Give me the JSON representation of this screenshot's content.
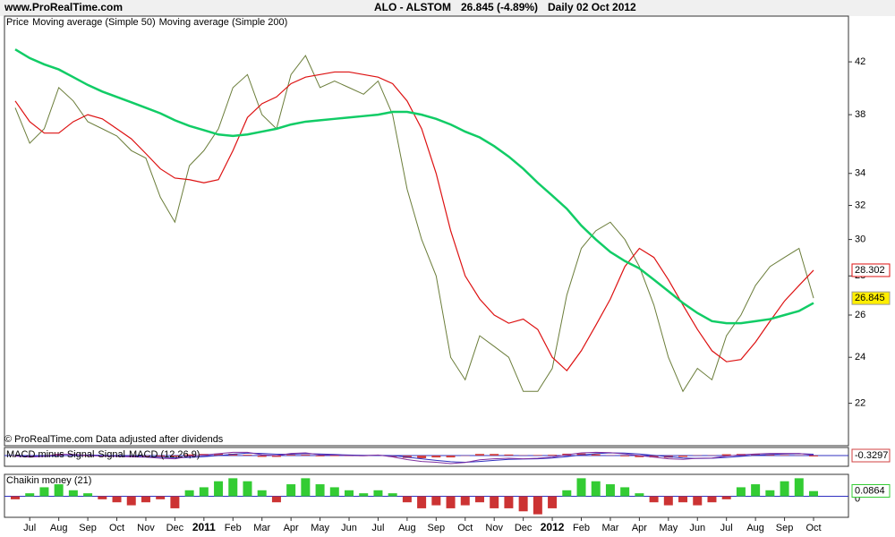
{
  "chart_data": [
    {
      "type": "line",
      "source": "www.ProRealTime.com",
      "title": "ALO - ALSTOM",
      "subtitle": "26.845 (-4.89%)",
      "period": "Daily  02 Oct 2012",
      "legend_label": "Price",
      "footer": "© ProRealTime.com  Data adjusted after dividends",
      "log": true,
      "categories": [
        null,
        "Jul",
        null,
        "Aug",
        null,
        "Sep",
        null,
        "Oct",
        null,
        "Nov",
        null,
        "Dec",
        null,
        "2011",
        null,
        "Feb",
        null,
        "Mar",
        null,
        "Apr",
        null,
        "May",
        null,
        "Jun",
        null,
        "Jul",
        null,
        "Aug",
        null,
        "Sep",
        null,
        "Oct",
        null,
        "Nov",
        null,
        "Dec",
        null,
        "2012",
        null,
        "Feb",
        null,
        "Mar",
        null,
        "Apr",
        null,
        "May",
        null,
        "Jun",
        null,
        "Jul",
        null,
        "Aug",
        null,
        "Sep",
        null,
        "Oct"
      ],
      "series": [
        {
          "name": "Price",
          "color": "#6b7d3a",
          "values": [
            38.5,
            36,
            37,
            40,
            39,
            37.5,
            37,
            36.5,
            35.5,
            35,
            32.5,
            31,
            34.5,
            35.5,
            37,
            40,
            41,
            38,
            37,
            41,
            42.5,
            40,
            40.5,
            40,
            39.5,
            40.5,
            38,
            33,
            30,
            28,
            24,
            23,
            25,
            24.5,
            24,
            22.5,
            22.5,
            23.5,
            27,
            29.5,
            30.5,
            31,
            30,
            28.5,
            26.5,
            24,
            22.5,
            23.5,
            23,
            25,
            26,
            27.5,
            28.5,
            29,
            29.5,
            26.845
          ]
        },
        {
          "name": "Moving average (Simple 50)",
          "color": "#dd1111",
          "values": [
            39,
            37.5,
            36.7,
            36.7,
            37.5,
            38,
            37.7,
            37,
            36.3,
            35.3,
            34.3,
            33.7,
            33.6,
            33.4,
            33.6,
            35.5,
            37.8,
            38.8,
            39.3,
            40.3,
            40.8,
            41,
            41.2,
            41.2,
            41,
            40.8,
            40.3,
            39,
            37,
            34,
            30.5,
            28,
            26.8,
            26,
            25.6,
            25.8,
            25.3,
            24,
            23.4,
            24.3,
            25.5,
            26.8,
            28.5,
            29.5,
            29,
            27.8,
            26.5,
            25.3,
            24.3,
            23.8,
            23.9,
            24.7,
            25.7,
            26.7,
            27.5,
            28.302
          ]
        },
        {
          "name": "Moving average (Simple 200)",
          "color": "#11cc66",
          "values": [
            43,
            42.3,
            41.8,
            41.4,
            40.8,
            40.2,
            39.7,
            39.3,
            38.9,
            38.5,
            38.1,
            37.6,
            37.2,
            36.9,
            36.6,
            36.5,
            36.6,
            36.8,
            37,
            37.3,
            37.5,
            37.6,
            37.7,
            37.8,
            37.9,
            38,
            38.2,
            38.2,
            38,
            37.7,
            37.3,
            36.8,
            36.4,
            35.8,
            35.1,
            34.3,
            33.4,
            32.6,
            31.8,
            30.8,
            30,
            29.3,
            28.8,
            28.4,
            27.8,
            27.2,
            26.6,
            26.1,
            25.7,
            25.6,
            25.6,
            25.7,
            25.8,
            26,
            26.2,
            26.6
          ]
        }
      ],
      "ylim": [
        20.3,
        45.8
      ],
      "yticks": [
        22,
        24,
        26,
        28,
        30,
        32,
        34,
        38,
        42
      ]
    },
    {
      "type": "macd",
      "series": [
        {
          "name": "MACD minus Signal",
          "color": "#d04040",
          "values": [
            -0.1,
            -0.3,
            0,
            0.6,
            0.3,
            -0.2,
            -0.3,
            -0.2,
            -0.2,
            -0.2,
            -0.4,
            -0.4,
            0.4,
            0.6,
            0.7,
            0.7,
            0.3,
            -0.5,
            -0.5,
            0.3,
            0.3,
            -0.3,
            -0.2,
            -0.2,
            -0.2,
            0.1,
            -0.5,
            -0.9,
            -1,
            -0.7,
            -0.7,
            -0.1,
            0.6,
            0.6,
            0.4,
            0.1,
            0.2,
            0.3,
            0.7,
            0.8,
            0.5,
            0.1,
            -0.3,
            -0.6,
            -0.7,
            -0.8,
            -0.5,
            0.1,
            0.1,
            0.5,
            0.6,
            0.5,
            0.4,
            0.2,
            0.1,
            -0.3297
          ]
        },
        {
          "name": "Signal",
          "color": "#3030c0",
          "values": [
            -0.1,
            -0.3,
            -0.3,
            -0.1,
            0.1,
            0.2,
            0.1,
            -0.1,
            -0.3,
            -0.4,
            -0.6,
            -0.8,
            -0.7,
            -0.4,
            0,
            0.5,
            0.9,
            0.8,
            0.5,
            0.5,
            0.7,
            0.6,
            0.4,
            0.2,
            0.1,
            0.1,
            0,
            -0.6,
            -1.2,
            -1.8,
            -2.3,
            -2.5,
            -2.2,
            -1.8,
            -1.4,
            -1.3,
            -1.2,
            -0.9,
            -0.4,
            0.2,
            0.7,
            1,
            0.9,
            0.6,
            0.1,
            -0.4,
            -0.9,
            -1.1,
            -1,
            -0.7,
            -0.3,
            0.1,
            0.4,
            0.6,
            0.7,
            0.5
          ]
        },
        {
          "name": "MACD (12,26,9)",
          "color": "#8030a0",
          "values": [
            -0.2,
            -0.6,
            -0.3,
            0.5,
            0.4,
            0,
            -0.2,
            -0.3,
            -0.5,
            -0.6,
            -1,
            -1.2,
            -0.3,
            0.2,
            0.7,
            1.2,
            1.2,
            0.3,
            0,
            0.8,
            1,
            0.3,
            0.2,
            0,
            -0.1,
            0.2,
            -0.5,
            -1.5,
            -2.2,
            -2.5,
            -3,
            -2.6,
            -1.6,
            -1.2,
            -1,
            -1.2,
            -1,
            -0.6,
            0.3,
            1,
            1.2,
            1.1,
            0.6,
            0,
            -0.6,
            -1.2,
            -1.4,
            -1,
            -0.9,
            -0.2,
            0.3,
            0.6,
            0.8,
            0.8,
            0.8,
            0.17
          ]
        }
      ],
      "ylim": [
        -4,
        3
      ]
    },
    {
      "type": "bar",
      "series": [
        {
          "name": "Chaikin money (21)",
          "color": "#33cc33",
          "down_color": "#cc3333",
          "values": [
            -0.05,
            0.05,
            0.15,
            0.2,
            0.1,
            0.05,
            -0.05,
            -0.1,
            -0.15,
            -0.1,
            -0.05,
            -0.2,
            0.1,
            0.15,
            0.25,
            0.3,
            0.25,
            0.1,
            -0.1,
            0.2,
            0.3,
            0.2,
            0.15,
            0.1,
            0.05,
            0.1,
            0.05,
            -0.1,
            -0.2,
            -0.15,
            -0.2,
            -0.15,
            -0.1,
            -0.2,
            -0.2,
            -0.25,
            -0.3,
            -0.2,
            0.1,
            0.3,
            0.25,
            0.2,
            0.15,
            0.05,
            -0.1,
            -0.15,
            -0.1,
            -0.15,
            -0.1,
            -0.05,
            0.15,
            0.2,
            0.1,
            0.25,
            0.3,
            0.0864
          ]
        }
      ],
      "ylim": [
        -0.35,
        0.35
      ],
      "yticks": [
        0
      ]
    }
  ]
}
